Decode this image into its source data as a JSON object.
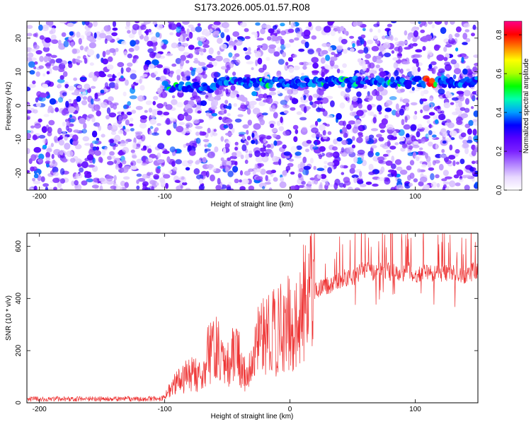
{
  "title": "S173.2026.005.01.57.R08",
  "chart_data": [
    {
      "type": "heatmap",
      "xlabel": "Height of straight line (km)",
      "ylabel": "Frequency (Hz)",
      "xlim": [
        -210,
        150
      ],
      "ylim": [
        -25,
        25
      ],
      "xticks": [
        -200,
        -100,
        0,
        100
      ],
      "yticks": [
        -20,
        -10,
        0,
        10,
        20
      ],
      "ridge": {
        "x_range": [
          -100,
          150
        ],
        "frequency_hz": 7,
        "strongest_x": 112
      },
      "colorbar": {
        "label": "Normalized spectral amplitude",
        "range": [
          0.0,
          0.87
        ],
        "ticks": [
          0.0,
          0.2,
          0.4,
          0.6,
          0.8
        ],
        "tick_labels": [
          "0.0",
          "0.2",
          "0.4",
          "0.6",
          "0.8"
        ],
        "colors": [
          "#ffffff",
          "#e8d8ff",
          "#b080ff",
          "#7a20ff",
          "#5500ff",
          "#0000ff",
          "#00a0ff",
          "#00ffb0",
          "#00ff00",
          "#b0ff00",
          "#ffff00",
          "#ff8000",
          "#ff0000",
          "#ff0088"
        ]
      },
      "grid": false
    },
    {
      "type": "line",
      "xlabel": "Height of straight line (km)",
      "ylabel": "SNR (10 * v/v)",
      "xlim": [
        -210,
        150
      ],
      "ylim": [
        0,
        650
      ],
      "xticks": [
        -200,
        -100,
        0,
        100
      ],
      "yticks": [
        0,
        200,
        400,
        600
      ],
      "series": [
        {
          "color": "#ee3333",
          "x": [
            -210,
            -180,
            -150,
            -120,
            -105,
            -100,
            -95,
            -90,
            -85,
            -80,
            -75,
            -70,
            -65,
            -60,
            -55,
            -50,
            -45,
            -40,
            -35,
            -30,
            -25,
            -20,
            -15,
            -10,
            -5,
            0,
            5,
            10,
            15,
            20,
            25,
            30,
            35,
            40,
            45,
            50,
            55,
            60,
            65,
            70,
            75,
            80,
            85,
            90,
            95,
            100,
            105,
            110,
            115,
            120,
            125,
            130,
            135,
            140,
            145,
            150
          ],
          "values": [
            15,
            15,
            15,
            15,
            15,
            20,
            60,
            80,
            90,
            120,
            110,
            100,
            200,
            220,
            180,
            150,
            200,
            180,
            100,
            160,
            250,
            260,
            270,
            280,
            300,
            310,
            360,
            380,
            420,
            430,
            445,
            450,
            460,
            470,
            480,
            480,
            500,
            510,
            505,
            500,
            510,
            500,
            495,
            500,
            505,
            480,
            500,
            500,
            495,
            490,
            495,
            500,
            495,
            490,
            500,
            510
          ]
        }
      ],
      "grid": false
    }
  ]
}
